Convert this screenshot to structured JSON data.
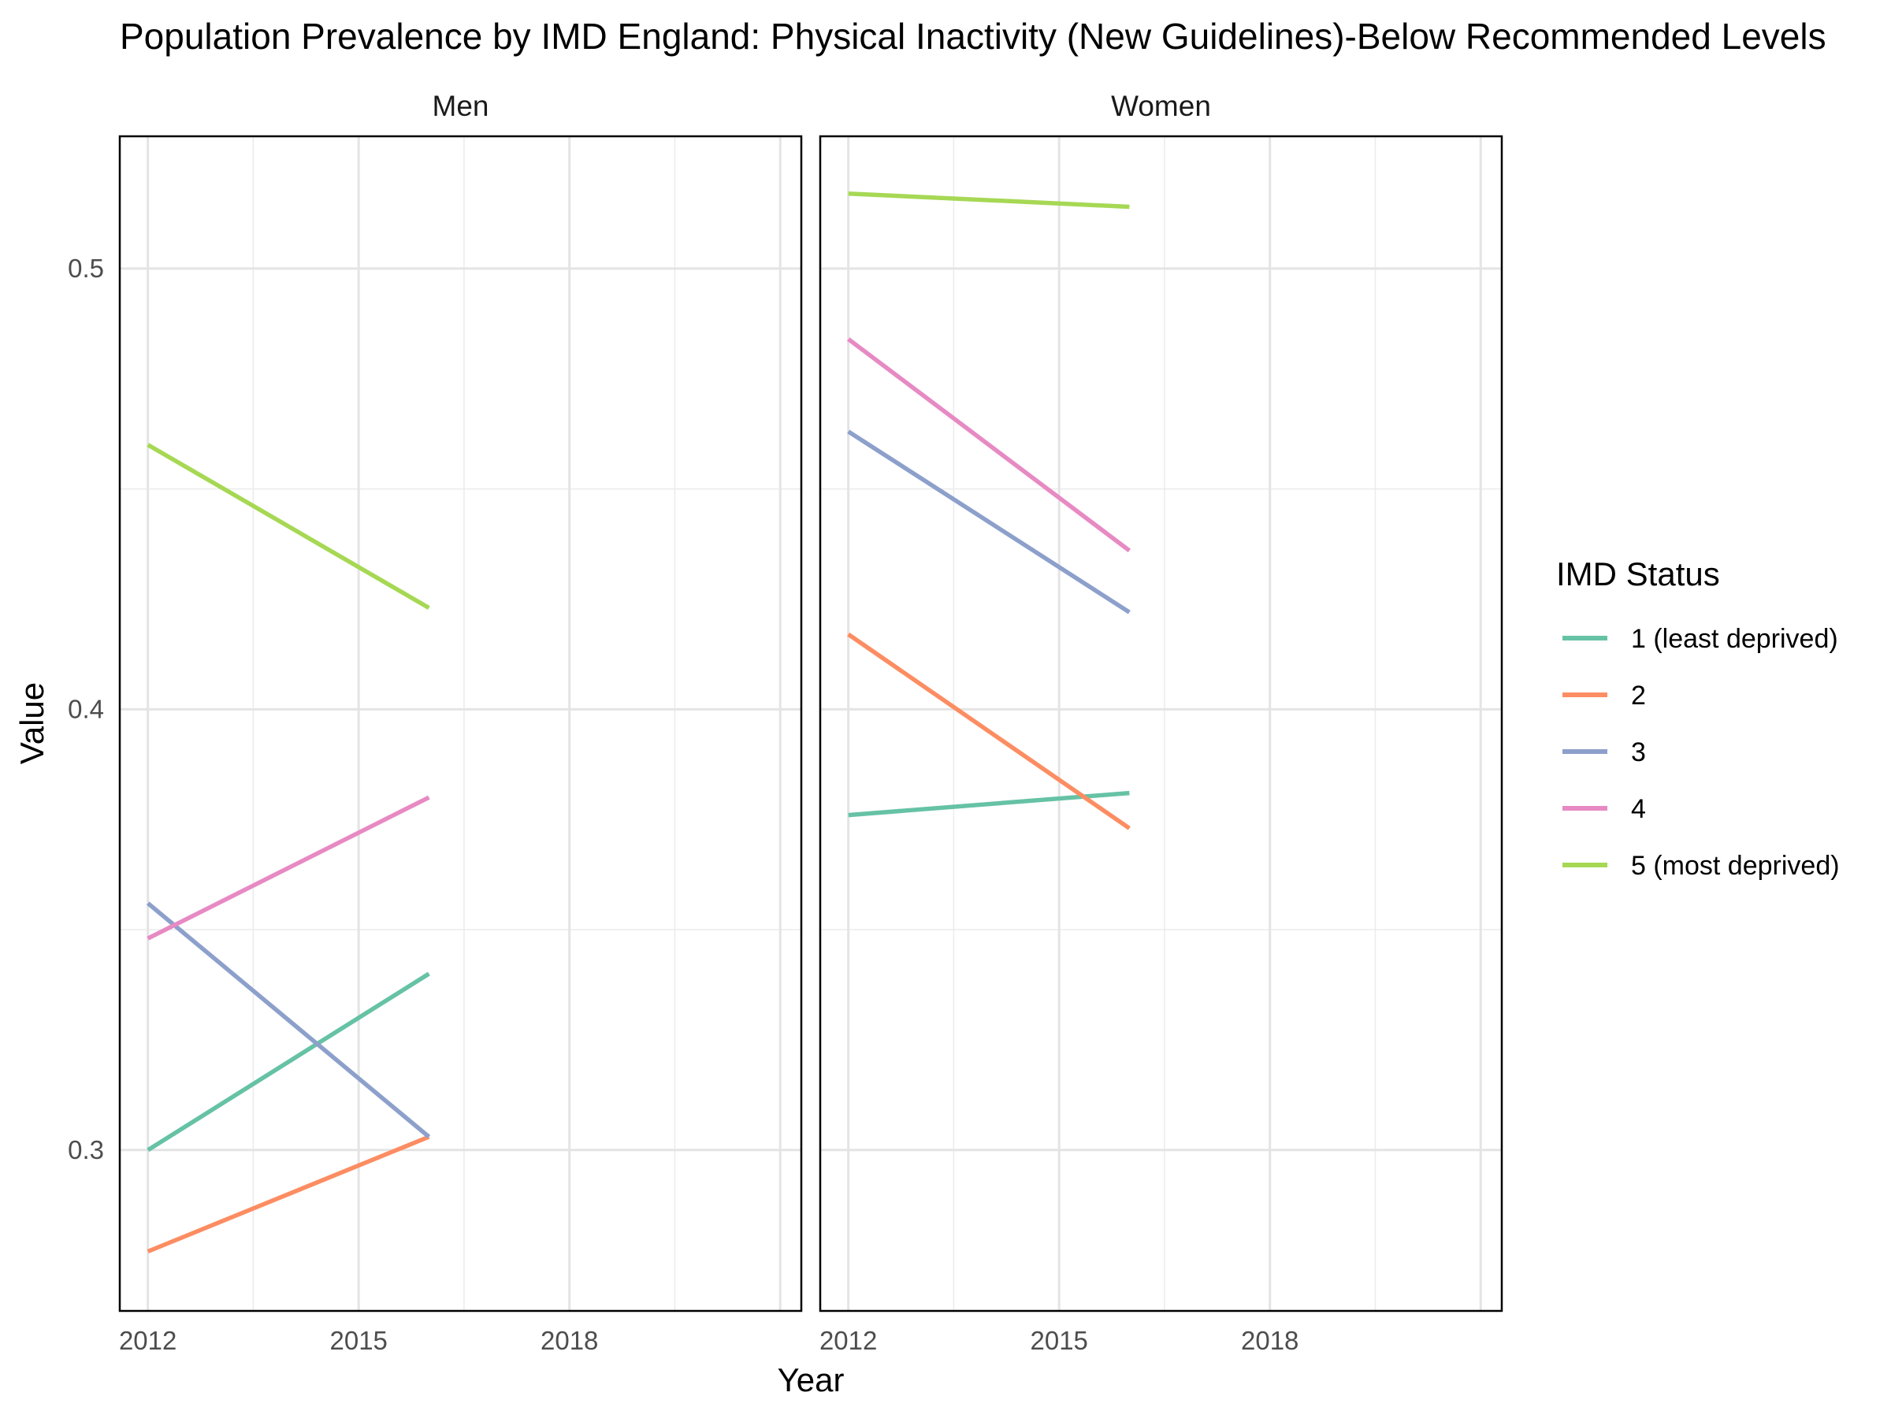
{
  "chart_data": {
    "type": "line",
    "title": "Population Prevalence by IMD England: Physical Inactivity (New Guidelines)-Below Recommended Levels",
    "xlabel": "Year",
    "ylabel": "Value",
    "xlim": [
      2011.6,
      2021.3
    ],
    "ylim": [
      0.2635,
      0.53
    ],
    "x_ticks": [
      2012,
      2015,
      2018
    ],
    "y_ticks": [
      0.3,
      0.4,
      0.5
    ],
    "x_tick_labels": [
      "2012",
      "2015",
      "2018"
    ],
    "y_tick_labels": [
      "0.3",
      "0.4",
      "0.5"
    ],
    "grid": true,
    "legend": {
      "title": "IMD Status",
      "position": "right",
      "entries": [
        "1 (least deprived)",
        "2",
        "3",
        "4",
        "5 (most deprived)"
      ]
    },
    "colors": [
      "#66c2a5",
      "#fc8d62",
      "#8da0cb",
      "#e78ac3",
      "#a6d854"
    ],
    "facets": [
      {
        "label": "Men",
        "series": [
          {
            "name": "1 (least deprived)",
            "x": [
              2012,
              2016
            ],
            "y": [
              0.3,
              0.34
            ]
          },
          {
            "name": "2",
            "x": [
              2012,
              2016
            ],
            "y": [
              0.277,
              0.303
            ]
          },
          {
            "name": "3",
            "x": [
              2012,
              2016
            ],
            "y": [
              0.356,
              0.303
            ]
          },
          {
            "name": "4",
            "x": [
              2012,
              2016
            ],
            "y": [
              0.348,
              0.38
            ]
          },
          {
            "name": "5 (most deprived)",
            "x": [
              2012,
              2016
            ],
            "y": [
              0.46,
              0.423
            ]
          }
        ]
      },
      {
        "label": "Women",
        "series": [
          {
            "name": "1 (least deprived)",
            "x": [
              2012,
              2016
            ],
            "y": [
              0.376,
              0.381
            ]
          },
          {
            "name": "2",
            "x": [
              2012,
              2016
            ],
            "y": [
              0.417,
              0.373
            ]
          },
          {
            "name": "3",
            "x": [
              2012,
              2016
            ],
            "y": [
              0.463,
              0.422
            ]
          },
          {
            "name": "4",
            "x": [
              2012,
              2016
            ],
            "y": [
              0.484,
              0.436
            ]
          },
          {
            "name": "5 (most deprived)",
            "x": [
              2012,
              2016
            ],
            "y": [
              0.517,
              0.514
            ]
          }
        ]
      }
    ]
  }
}
